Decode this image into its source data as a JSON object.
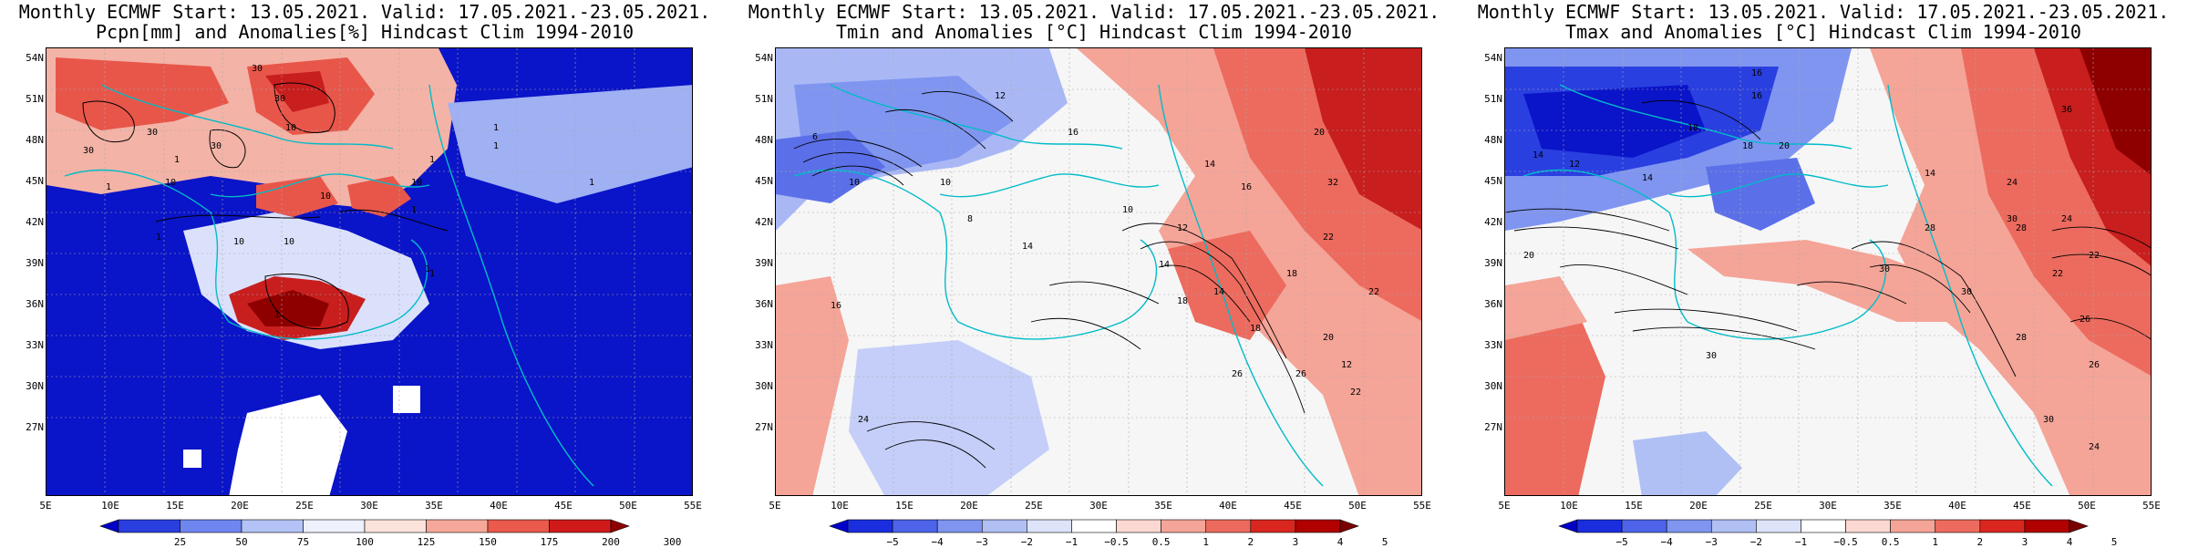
{
  "panels": [
    {
      "title_line1": "Monthly ECMWF Start: 13.05.2021. Valid: 17.05.2021.-23.05.2021.",
      "title_line2": "Pcpn[mm] and Anomalies[%] Hindcast Clim 1994-2010",
      "colorbar_labels": [
        "25",
        "50",
        "75",
        "100",
        "125",
        "150",
        "175",
        "200",
        "300"
      ],
      "colorbar_colors": [
        "#0000c8",
        "#2a3fe0",
        "#6f86f0",
        "#b4c3f7",
        "#eef0fb",
        "#fbe3dc",
        "#f5a89a",
        "#ea5a4c",
        "#d01a1a",
        "#8e0000"
      ],
      "map_palette": {
        "base": "#0a14c8",
        "mid": "#f4f4f4",
        "warm": "#e8564a",
        "hot": "#a00000"
      }
    },
    {
      "title_line1": "Monthly ECMWF Start: 13.05.2021. Valid: 17.05.2021.-23.05.2021.",
      "title_line2": "Tmin and Anomalies [°C] Hindcast Clim 1994-2010",
      "colorbar_labels": [
        "−5",
        "−4",
        "−3",
        "−2",
        "−1",
        "−0.5",
        "0.5",
        "1",
        "2",
        "3",
        "4",
        "5"
      ],
      "colorbar_colors": [
        "#0000c8",
        "#1a2ee0",
        "#4d64ea",
        "#7f95f0",
        "#b0c0f5",
        "#dde4fa",
        "#ffffff",
        "#fbd9d2",
        "#f5a498",
        "#ec6b5e",
        "#d9271f",
        "#b00000",
        "#7a0000"
      ],
      "map_palette": {
        "base": "#f6f6f6",
        "cool": "#8aa0f0",
        "warm": "#ec6b5e",
        "hot": "#b00000"
      }
    },
    {
      "title_line1": "Monthly ECMWF Start: 13.05.2021. Valid: 17.05.2021.-23.05.2021.",
      "title_line2": "Tmax and Anomalies [°C] Hindcast Clim 1994-2010",
      "colorbar_labels": [
        "−5",
        "−4",
        "−3",
        "−2",
        "−1",
        "−0.5",
        "0.5",
        "1",
        "2",
        "3",
        "4",
        "5"
      ],
      "colorbar_colors": [
        "#0000c8",
        "#1a2ee0",
        "#4d64ea",
        "#7f95f0",
        "#b0c0f5",
        "#dde4fa",
        "#ffffff",
        "#fbd9d2",
        "#f5a498",
        "#ec6b5e",
        "#d9271f",
        "#b00000",
        "#7a0000"
      ],
      "map_palette": {
        "base": "#f6f6f6",
        "cool": "#2a3fe0",
        "warm": "#ec6b5e",
        "hot": "#b00000"
      }
    }
  ],
  "lat_labels": [
    "54N",
    "51N",
    "48N",
    "45N",
    "42N",
    "39N",
    "36N",
    "33N",
    "30N",
    "27N"
  ],
  "lon_labels": [
    "5E",
    "10E",
    "15E",
    "20E",
    "25E",
    "30E",
    "35E",
    "40E",
    "45E",
    "50E",
    "55E"
  ],
  "contour_labels": {
    "p1": [
      "30",
      "30",
      "30",
      "30",
      "30",
      "1",
      "10",
      "10",
      "10",
      "10",
      "1",
      "1",
      "1",
      "1",
      "1",
      "1",
      "1",
      "1",
      "1",
      "10",
      "10",
      "1"
    ],
    "p2": [
      "6",
      "12",
      "14",
      "16",
      "20",
      "32",
      "10",
      "8",
      "10",
      "14",
      "18",
      "16",
      "14",
      "12",
      "10",
      "22",
      "18",
      "24",
      "26",
      "22",
      "16",
      "12",
      "18",
      "20",
      "22",
      "14",
      "26"
    ],
    "p3": [
      "16",
      "14",
      "12",
      "14",
      "18",
      "20",
      "14",
      "24",
      "30",
      "28",
      "24",
      "22",
      "26",
      "28",
      "30",
      "22",
      "20",
      "28",
      "30",
      "30",
      "36",
      "26",
      "30",
      "16",
      "18",
      "24"
    ]
  }
}
